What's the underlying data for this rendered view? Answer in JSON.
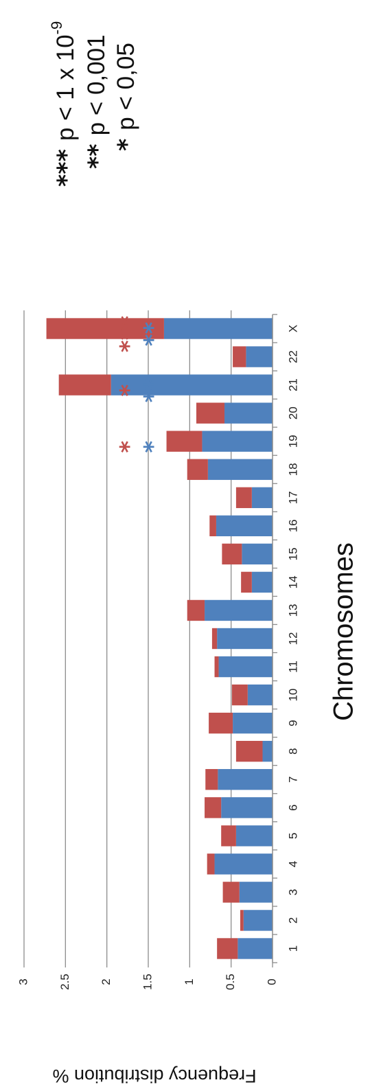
{
  "chart_data": {
    "type": "bar",
    "stacked": true,
    "orientation": "rotated-90-clockwise",
    "categories": [
      "1",
      "2",
      "3",
      "4",
      "5",
      "6",
      "7",
      "8",
      "9",
      "10",
      "11",
      "12",
      "13",
      "14",
      "15",
      "16",
      "17",
      "18",
      "19",
      "20",
      "21",
      "22",
      "X"
    ],
    "series": [
      {
        "values": [
          0.42,
          0.35,
          0.4,
          0.7,
          0.44,
          0.62,
          0.66,
          0.12,
          0.48,
          0.3,
          0.65,
          0.67,
          0.82,
          0.25,
          0.37,
          0.68,
          0.25,
          0.78,
          0.85,
          0.58,
          1.95,
          0.32,
          1.31
        ]
      },
      {
        "values": [
          0.25,
          0.04,
          0.2,
          0.09,
          0.18,
          0.2,
          0.15,
          0.32,
          0.29,
          0.19,
          0.05,
          0.06,
          0.21,
          0.13,
          0.24,
          0.08,
          0.19,
          0.25,
          0.43,
          0.34,
          0.63,
          0.16,
          1.42
        ]
      }
    ],
    "colors": {
      "series_0": "#4f81bd",
      "series_1": "#c0504d",
      "grid": "#8c8c8c"
    },
    "xlabel": "Chromosomes",
    "ylabel": "Frequency distribution %",
    "ylim": [
      0,
      3
    ],
    "yticks": [
      "0",
      "0.5",
      "1",
      "1.5",
      "2",
      "2.5",
      "3"
    ],
    "grid": true,
    "annotations": [
      {
        "category": "19",
        "blue": "*",
        "red": "*"
      },
      {
        "category": "21",
        "blue": "**",
        "red": "*"
      },
      {
        "category": "X",
        "blue": "**",
        "red": "***"
      }
    ],
    "legend": {
      "placement": "top-right",
      "entries": [
        {
          "stars": "***",
          "text": "p < 1 x 10",
          "superscript": "-9"
        },
        {
          "stars": "**",
          "text": "p < 0,001"
        },
        {
          "stars": "*",
          "text": "p < 0,05"
        }
      ]
    }
  }
}
